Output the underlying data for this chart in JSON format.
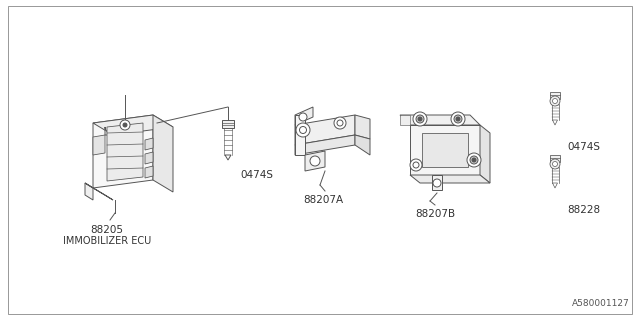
{
  "background_color": "#ffffff",
  "line_color": "#555555",
  "border_color": "#aaaaaa",
  "diagram_ref": "A580001127",
  "label_fontsize": 7.5,
  "sublabel_fontsize": 7.0,
  "ref_fontsize": 6.5,
  "border": [
    0.012,
    0.018,
    0.988,
    0.982
  ]
}
